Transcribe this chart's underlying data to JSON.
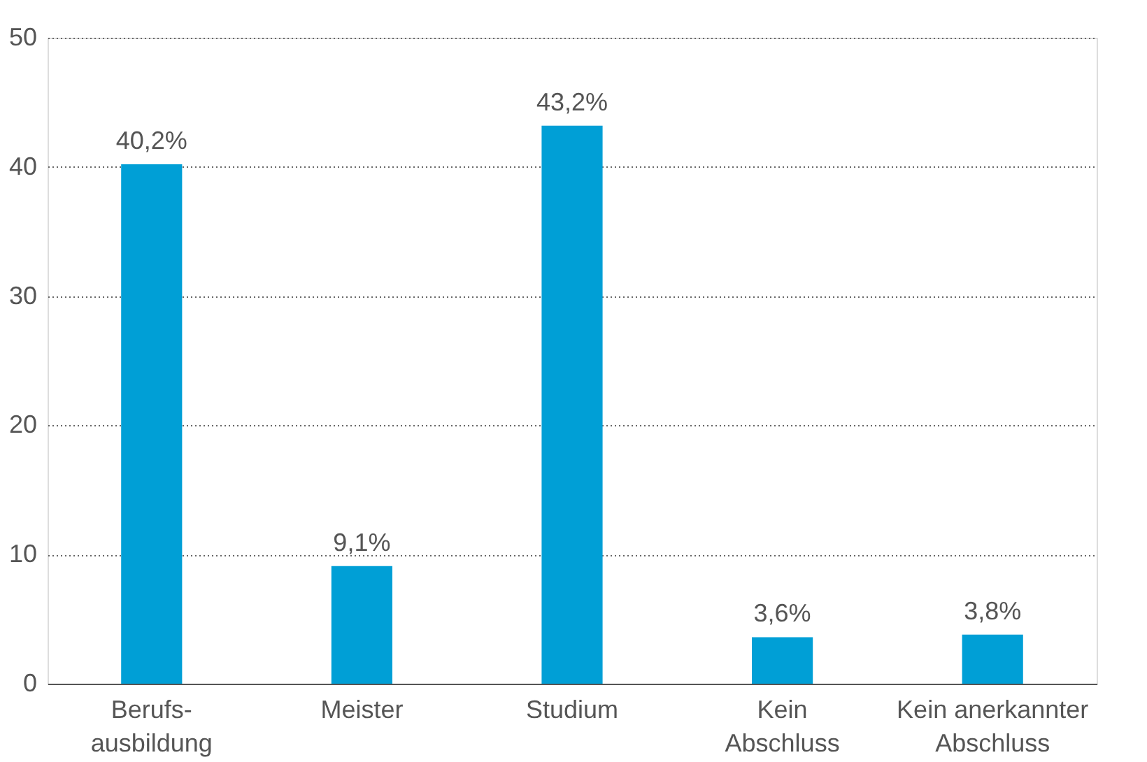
{
  "chart_data": {
    "type": "bar",
    "categories": [
      "Berufs-\nausbildung",
      "Meister",
      "Studium",
      "Kein\nAbschluss",
      "Kein anerkannter\nAbschluss"
    ],
    "values": [
      40.2,
      9.1,
      43.2,
      3.6,
      3.8
    ],
    "value_labels": [
      "40,2%",
      "9,1%",
      "43,2%",
      "3,6%",
      "3,8%"
    ],
    "color": "#009fd6",
    "ylim": [
      0,
      50
    ],
    "yticks": [
      0,
      10,
      20,
      30,
      40,
      50
    ],
    "grid": "y"
  }
}
